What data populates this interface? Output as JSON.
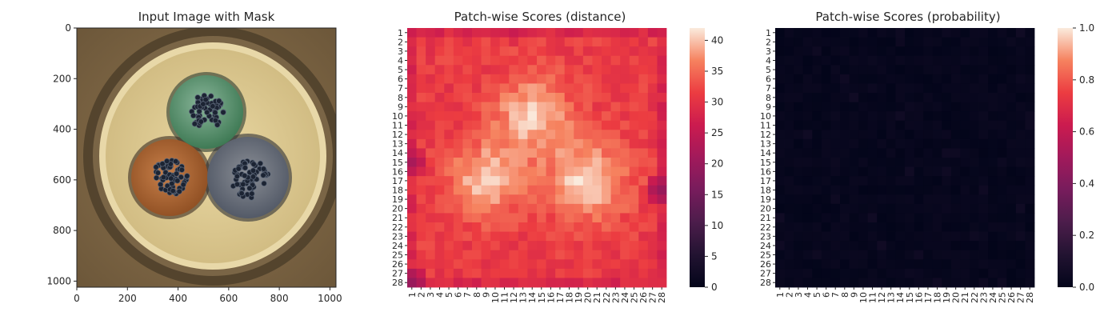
{
  "chart_data": [
    {
      "type": "image",
      "title": "Input Image with Mask",
      "xticks": [
        "0",
        "200",
        "400",
        "600",
        "800",
        "1000"
      ],
      "yticks": [
        "0",
        "200",
        "400",
        "600",
        "800",
        "1000"
      ],
      "xlim": [
        0,
        1024
      ],
      "ylim": [
        1024,
        0
      ],
      "contents": "photograph of a cable cross-section with three insulated cores (green, brown, grey)"
    },
    {
      "type": "heatmap",
      "title": "Patch-wise Scores (distance)",
      "rows": [
        "1",
        "2",
        "3",
        "4",
        "5",
        "6",
        "7",
        "8",
        "9",
        "10",
        "11",
        "12",
        "13",
        "14",
        "15",
        "16",
        "17",
        "18",
        "19",
        "20",
        "21",
        "22",
        "23",
        "24",
        "25",
        "26",
        "27",
        "28"
      ],
      "cols": [
        "1",
        "2",
        "3",
        "4",
        "5",
        "6",
        "7",
        "8",
        "9",
        "10",
        "11",
        "12",
        "13",
        "14",
        "15",
        "16",
        "17",
        "18",
        "19",
        "20",
        "21",
        "22",
        "23",
        "24",
        "25",
        "26",
        "27",
        "28"
      ],
      "colorbar": {
        "range": [
          0,
          42
        ],
        "ticks": [
          "0",
          "5",
          "10",
          "15",
          "20",
          "25",
          "30",
          "35",
          "40"
        ],
        "colormap": "rocket"
      },
      "base_value": 31,
      "hot_spots": [
        {
          "row": 10,
          "col": 14,
          "value": 40,
          "spread": 3
        },
        {
          "row": 17,
          "col": 9,
          "value": 40,
          "spread": 2.8
        },
        {
          "row": 17,
          "col": 20,
          "value": 41,
          "spread": 3
        }
      ],
      "low_spots": [
        {
          "row": 28,
          "col": 1,
          "value": 20
        },
        {
          "row": 15,
          "col": 1,
          "value": 22
        },
        {
          "row": 18,
          "col": 28,
          "value": 20
        },
        {
          "row": 1,
          "col": 7,
          "value": 27
        },
        {
          "row": 1,
          "col": 12,
          "value": 26
        }
      ]
    },
    {
      "type": "heatmap",
      "title": "Patch-wise Scores (probability)",
      "rows": [
        "1",
        "2",
        "3",
        "4",
        "5",
        "6",
        "7",
        "8",
        "9",
        "10",
        "11",
        "12",
        "13",
        "14",
        "15",
        "16",
        "17",
        "18",
        "19",
        "20",
        "21",
        "22",
        "23",
        "24",
        "25",
        "26",
        "27",
        "28"
      ],
      "cols": [
        "1",
        "2",
        "3",
        "4",
        "5",
        "6",
        "7",
        "8",
        "9",
        "10",
        "11",
        "12",
        "13",
        "14",
        "15",
        "16",
        "17",
        "18",
        "19",
        "20",
        "21",
        "22",
        "23",
        "24",
        "25",
        "26",
        "27",
        "28"
      ],
      "colorbar": {
        "range": [
          0,
          1
        ],
        "ticks": [
          "0.0",
          "0.2",
          "0.4",
          "0.6",
          "0.8",
          "1.0"
        ],
        "colormap": "rocket"
      },
      "base_value": 0.0,
      "max_value": 0.05
    }
  ]
}
